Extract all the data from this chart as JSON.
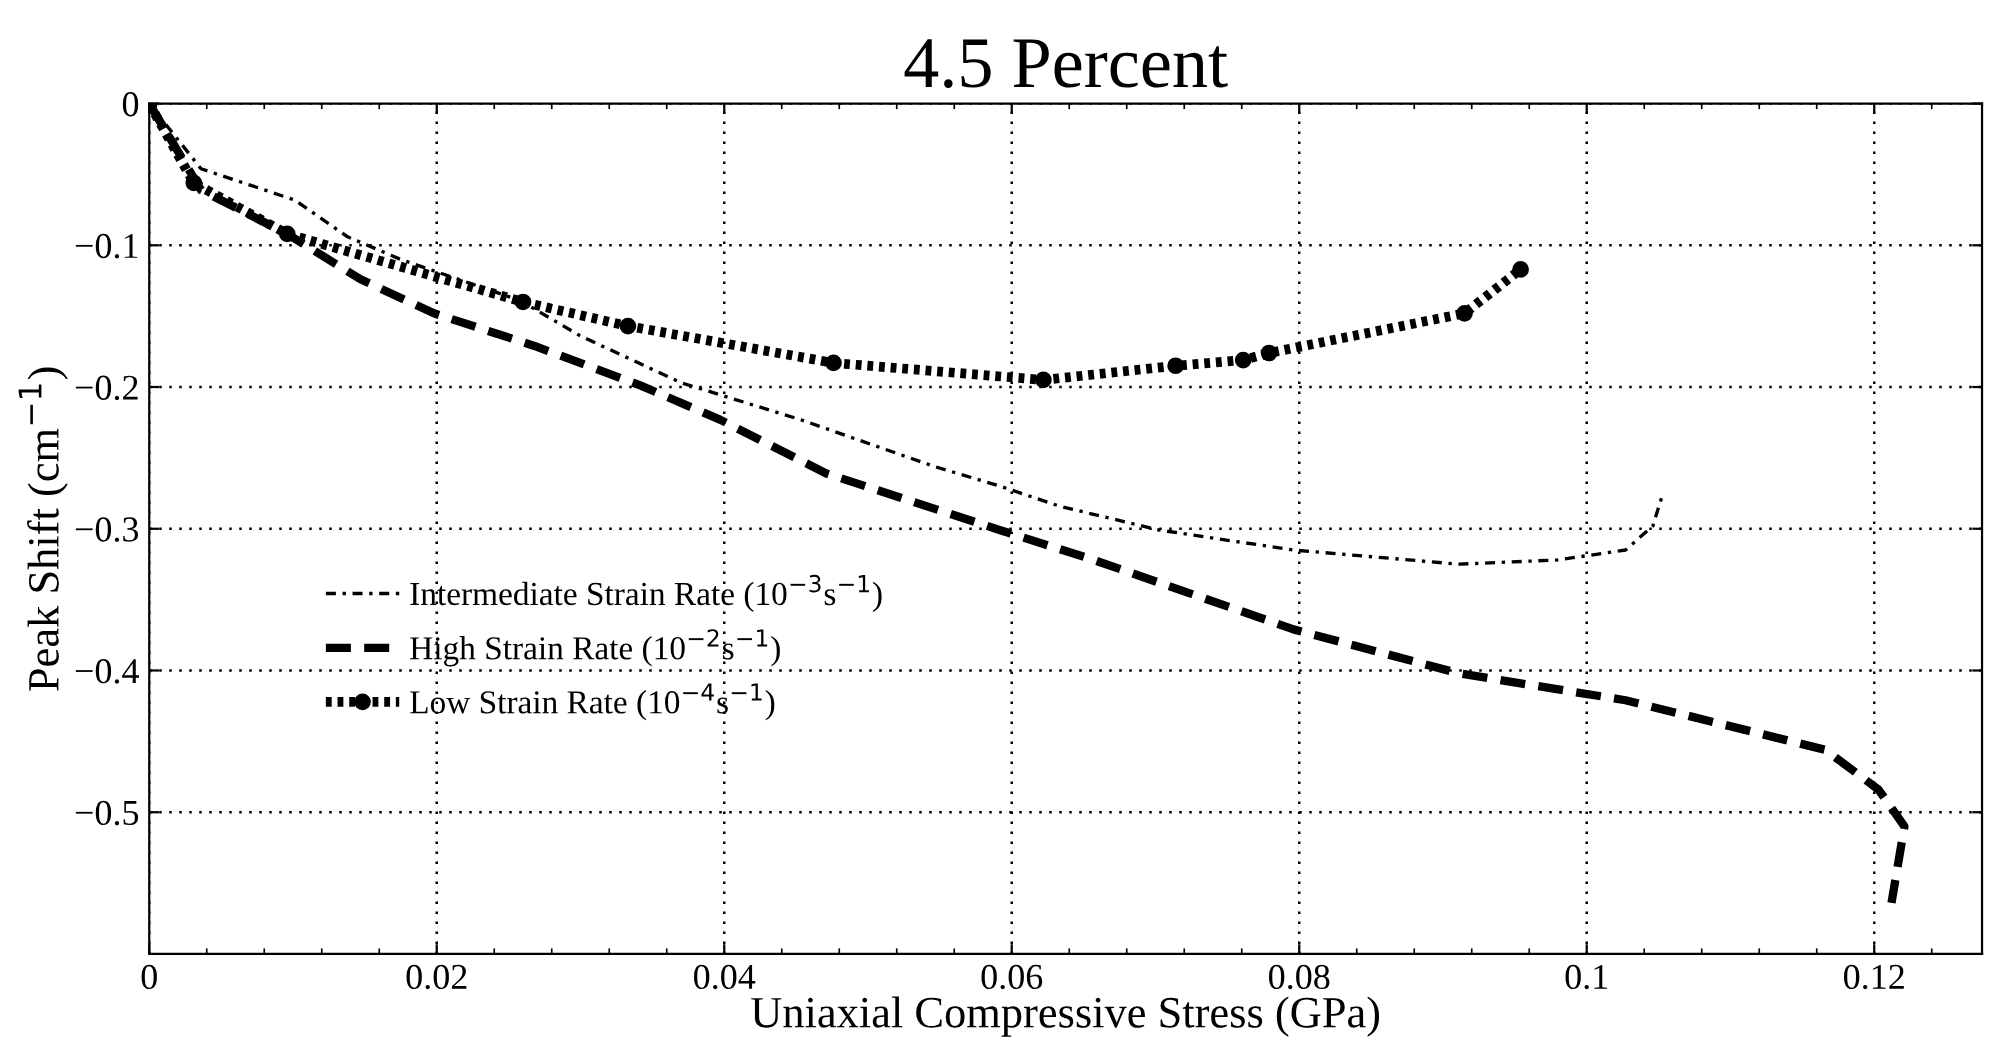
{
  "chart_data": {
    "type": "line",
    "title": "4.5 Percent",
    "xlabel": "Uniaxial Compressive Stress (GPa)",
    "ylabel": "Peak Shift (cm$^{−1}$)",
    "xlim": [
      0,
      0.1275
    ],
    "ylim": [
      -0.6,
      0
    ],
    "xticks": [
      0,
      0.02,
      0.04,
      0.06,
      0.08,
      0.1,
      0.12
    ],
    "yticks": [
      0,
      -0.1,
      -0.2,
      -0.3,
      -0.4,
      -0.5
    ],
    "grid": true,
    "legend": "center left",
    "series": [
      {
        "name": "Intermediate Strain Rate (10$^{−3}$s$^{−1}$)",
        "color": "#000000",
        "line_style": "dashdot",
        "marker": "none",
        "x": [
          0,
          0.0036,
          0.0101,
          0.0138,
          0.0175,
          0.0258,
          0.03,
          0.037,
          0.0453,
          0.0546,
          0.0592,
          0.0633,
          0.0703,
          0.0796,
          0.0911,
          0.098,
          0.1027,
          0.1046,
          0.1053
        ],
        "values": [
          0,
          -0.046,
          -0.068,
          -0.094,
          -0.11,
          -0.139,
          -0.164,
          -0.197,
          -0.223,
          -0.256,
          -0.27,
          -0.284,
          -0.301,
          -0.315,
          -0.325,
          -0.322,
          -0.315,
          -0.298,
          -0.275
        ]
      },
      {
        "name": "High Strain Rate (10$^{−2}$s$^{−1}$)",
        "color": "#000000",
        "line_style": "dashed",
        "marker": "none",
        "x": [
          0,
          0.0036,
          0.0096,
          0.0147,
          0.0198,
          0.0268,
          0.0342,
          0.0397,
          0.0471,
          0.0592,
          0.0657,
          0.0796,
          0.0911,
          0.1027,
          0.1166,
          0.1203,
          0.1221,
          0.1212
        ],
        "values": [
          0,
          -0.061,
          -0.092,
          -0.124,
          -0.148,
          -0.171,
          -0.199,
          -0.223,
          -0.261,
          -0.301,
          -0.322,
          -0.371,
          -0.402,
          -0.421,
          -0.456,
          -0.484,
          -0.51,
          -0.564
        ]
      },
      {
        "name": "Low Strain Rate (10$^{−4}$s$^{−1}$)",
        "color": "#000000",
        "line_style": "dotted",
        "marker": "circle",
        "x": [
          0,
          0.0031,
          0.0096,
          0.026,
          0.0333,
          0.0476,
          0.0622,
          0.0714,
          0.0761,
          0.0779,
          0.0915,
          0.0954
        ],
        "values": [
          0,
          -0.056,
          -0.092,
          -0.14,
          -0.157,
          -0.183,
          -0.195,
          -0.185,
          -0.181,
          -0.176,
          -0.148,
          -0.117
        ]
      }
    ]
  }
}
